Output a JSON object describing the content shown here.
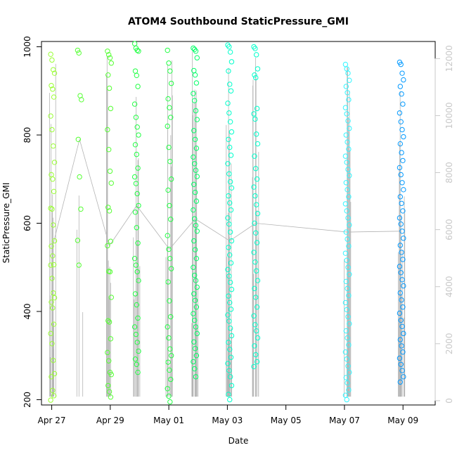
{
  "chart_data": {
    "type": "scatter",
    "title": "ATOM4 Southbound StaticPressure_GMI",
    "xlabel": "Date",
    "ylabel": "StaticPressure_GMI",
    "x_tick_labels": [
      "Apr 27",
      "Apr 29",
      "May 01",
      "May 03",
      "May 05",
      "May 07",
      "May 09"
    ],
    "x_tick_values": [
      0,
      2,
      4,
      6,
      8,
      10,
      12
    ],
    "xlim": [
      -0.35,
      13.1
    ],
    "ylim": [
      188,
      1012
    ],
    "y_ticks": [
      200,
      400,
      600,
      800,
      1000
    ],
    "y2_ticks": [
      0,
      2000,
      4000,
      6000,
      8000,
      10000,
      12000
    ],
    "y2lim": [
      -150,
      12600
    ],
    "grid": false,
    "point_colors": [
      "#99ff33",
      "#55ff33",
      "#22ff44",
      "#00ff66",
      "#00ffcc",
      "#00ffff",
      "#33f5ff",
      "#0099ff"
    ],
    "series": [
      {
        "x_center": 0.03,
        "values": [
          983,
          970,
          948,
          940,
          912,
          904,
          886,
          843,
          812,
          775,
          738,
          710,
          700,
          672,
          634,
          632,
          596,
          560,
          548,
          526,
          506,
          505,
          475,
          442,
          431,
          421,
          408,
          371,
          350,
          327,
          289,
          259,
          252,
          221,
          209,
          199
        ]
      },
      {
        "x_center": 0.95,
        "values": [
          992,
          986,
          889,
          880,
          790,
          705,
          632,
          561,
          505
        ]
      },
      {
        "x_center": 1.97,
        "values": [
          990,
          982,
          975,
          963,
          936,
          906,
          860,
          812,
          767,
          718,
          691,
          636,
          628,
          559,
          549,
          491,
          490,
          432,
          379,
          376,
          338,
          307,
          288,
          262,
          257,
          232,
          218,
          206
        ]
      },
      {
        "x_center": 2.9,
        "values": [
          1007,
          997,
          992,
          990,
          945,
          935,
          910,
          870,
          840,
          818,
          800,
          778,
          756,
          725,
          705,
          690,
          667,
          640,
          625,
          590,
          555,
          520,
          505,
          490,
          470,
          440,
          415,
          385,
          365,
          348,
          330,
          310,
          292,
          280,
          262
        ]
      },
      {
        "x_center": 4.02,
        "values": [
          992,
          963,
          945,
          917,
          882,
          862,
          840,
          820,
          772,
          740,
          700,
          675,
          640,
          609,
          572,
          541,
          520,
          497,
          467,
          424,
          388,
          365,
          340,
          315,
          300,
          285,
          267,
          246,
          225,
          208,
          195
        ]
      },
      {
        "x_center": 4.9,
        "values": [
          997,
          994,
          990,
          975,
          946,
          936,
          918,
          894,
          878,
          855,
          835,
          810,
          790,
          770,
          750,
          735,
          720,
          706,
          688,
          670,
          650,
          630,
          610,
          595,
          582,
          560,
          540,
          520,
          500,
          482,
          470,
          455,
          440,
          425,
          410,
          395,
          380,
          365,
          350,
          331,
          316,
          300,
          286,
          270,
          252
        ]
      },
      {
        "x_center": 6.08,
        "values": [
          1004,
          1000,
          988,
          966,
          945,
          915,
          900,
          872,
          850,
          830,
          807,
          790,
          772,
          754,
          735,
          712,
          694,
          680,
          662,
          646,
          630,
          612,
          598,
          580,
          560,
          545,
          528,
          510,
          495,
          480,
          466,
          450,
          435,
          420,
          405,
          392,
          378,
          362,
          345,
          330,
          314,
          296,
          282,
          266,
          252,
          232,
          212,
          200
        ]
      },
      {
        "x_center": 6.97,
        "values": [
          1000,
          996,
          982,
          950,
          936,
          930,
          860,
          848,
          836,
          802,
          780,
          752,
          724,
          700,
          682,
          662,
          642,
          622,
          600,
          578,
          556,
          534,
          512,
          492,
          470,
          452,
          432,
          410,
          390,
          370,
          356,
          340,
          322,
          302,
          286,
          275
        ]
      },
      {
        "x_center": 10.1,
        "values": [
          960,
          950,
          940,
          924,
          910,
          896,
          880,
          862,
          848,
          832,
          815,
          800,
          784,
          768,
          752,
          738,
          722,
          708,
          692,
          676,
          660,
          644,
          628,
          612,
          596,
          580,
          564,
          548,
          532,
          516,
          500,
          484,
          468,
          452,
          436,
          420,
          404,
          388,
          372,
          356,
          340,
          324,
          308,
          292,
          276,
          262,
          250,
          238,
          222,
          210,
          200
        ]
      },
      {
        "x_center": 11.95,
        "values": [
          965,
          960,
          940,
          925,
          910,
          893,
          870,
          850,
          830,
          812,
          796,
          780,
          760,
          742,
          726,
          710,
          692,
          676,
          660,
          645,
          628,
          612,
          598,
          582,
          566,
          550,
          534,
          518,
          502,
          488,
          472,
          458,
          442,
          426,
          410,
          396,
          380,
          366,
          350,
          336,
          322,
          308,
          294,
          280,
          266,
          252,
          240
        ]
      }
    ]
  }
}
